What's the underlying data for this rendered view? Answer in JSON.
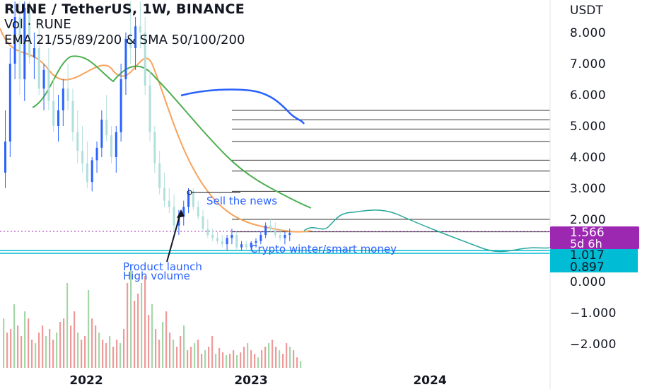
{
  "header": {
    "symbol_line": "RUNE / TetherUS, 1W, BINANCE",
    "volume_line": "Vol · RUNE",
    "indicators_line": "EMA 21/55/89/200 & SMA 50/100/200"
  },
  "chart_data": {
    "type": "candlestick",
    "title": "RUNE / TetherUS, 1W, BINANCE",
    "y_axis_unit": "USDT",
    "y_axis_ticks": [
      8,
      7,
      6,
      5,
      4,
      3,
      2,
      0,
      -1,
      -2
    ],
    "y_axis_tick_labels": [
      "8.000",
      "7.000",
      "6.000",
      "5.000",
      "4.000",
      "3.000",
      "2.000",
      "0.000",
      "−1.000",
      "−2.000"
    ],
    "x_axis_tick_labels": [
      "2022",
      "2023",
      "2024"
    ],
    "price_labels": [
      {
        "value": 1.566,
        "text": "1.566",
        "subtext": "5d 6h",
        "color": "#9c27b0"
      },
      {
        "value": 1.017,
        "text": "1.017",
        "color": "#00bcd4"
      },
      {
        "value": 0.897,
        "text": "0.897",
        "color": "#00bcd4"
      }
    ],
    "annotations": [
      {
        "text": "Sell the news",
        "color": "#2962ff"
      },
      {
        "text": "Crypto winter/smart money",
        "color": "#2962ff"
      },
      {
        "text": "Product launch",
        "color": "#2962ff"
      },
      {
        "text": "High volume",
        "color": "#2962ff"
      }
    ],
    "horizontal_levels": [
      5.5,
      5.2,
      4.9,
      4.5,
      3.9,
      3.55,
      2.9,
      2.0,
      1.6
    ],
    "candles_approx": [
      {
        "o": 4.0,
        "h": 7.0,
        "l": 3.0,
        "c": 6.0
      },
      {
        "o": 6.0,
        "h": 8.5,
        "l": 5.5,
        "c": 8.2
      },
      {
        "o": 8.2,
        "h": 9.0,
        "l": 6.0,
        "c": 6.5
      },
      {
        "o": 6.5,
        "h": 9.0,
        "l": 5.0,
        "c": 5.5
      },
      {
        "o": 5.5,
        "h": 7.5,
        "l": 4.5,
        "c": 4.8
      },
      {
        "o": 4.8,
        "h": 6.0,
        "l": 3.8,
        "c": 4.0
      },
      {
        "o": 4.0,
        "h": 5.0,
        "l": 3.0,
        "c": 3.4
      },
      {
        "o": 3.4,
        "h": 8.0,
        "l": 3.0,
        "c": 7.8
      },
      {
        "o": 7.8,
        "h": 9.0,
        "l": 6.5,
        "c": 7.0
      },
      {
        "o": 7.0,
        "h": 7.5,
        "l": 4.5,
        "c": 5.0
      },
      {
        "o": 5.0,
        "h": 5.5,
        "l": 3.5,
        "c": 3.8
      },
      {
        "o": 3.8,
        "h": 4.0,
        "l": 2.4,
        "c": 2.6
      },
      {
        "o": 2.6,
        "h": 2.9,
        "l": 1.6,
        "c": 1.9
      },
      {
        "o": 1.9,
        "h": 2.3,
        "l": 1.5,
        "c": 2.1
      },
      {
        "o": 2.1,
        "h": 2.9,
        "l": 1.8,
        "c": 2.7
      },
      {
        "o": 2.7,
        "h": 3.0,
        "l": 2.0,
        "c": 2.2
      },
      {
        "o": 2.2,
        "h": 2.4,
        "l": 1.5,
        "c": 1.6
      },
      {
        "o": 1.6,
        "h": 1.8,
        "l": 1.3,
        "c": 1.4
      },
      {
        "o": 1.4,
        "h": 1.6,
        "l": 1.1,
        "c": 1.25
      },
      {
        "o": 1.25,
        "h": 1.4,
        "l": 1.0,
        "c": 1.15
      },
      {
        "o": 1.15,
        "h": 1.5,
        "l": 1.0,
        "c": 1.4
      },
      {
        "o": 1.4,
        "h": 2.0,
        "l": 1.3,
        "c": 1.8
      },
      {
        "o": 1.8,
        "h": 1.9,
        "l": 1.3,
        "c": 1.4
      },
      {
        "o": 1.4,
        "h": 1.6,
        "l": 1.2,
        "c": 1.5
      }
    ],
    "colors": {
      "up": "#2962ff",
      "down": "#b2dfdb",
      "ema_orange": "#f7a35c",
      "ema_green": "#4caf50",
      "projection": "#26a69a",
      "grid_level": "#333333",
      "volume_down": "#ef9a9a",
      "volume_up": "#a5d6a7"
    }
  }
}
